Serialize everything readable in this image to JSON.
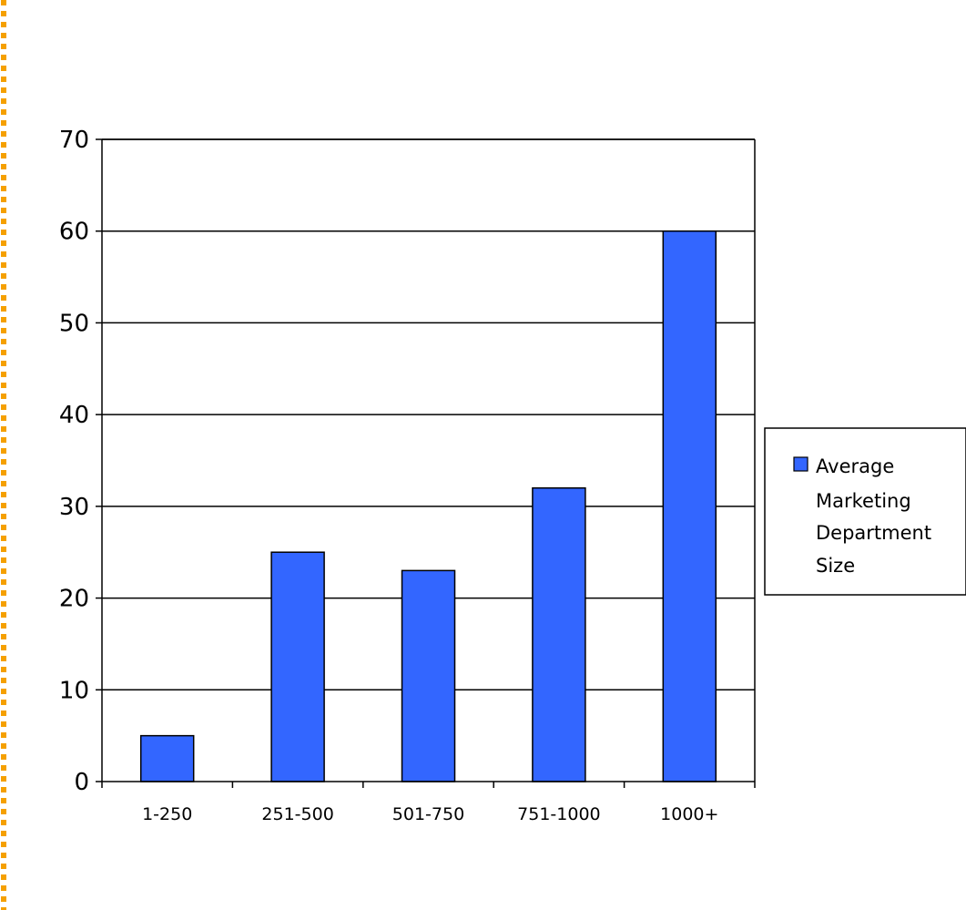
{
  "chart_data": {
    "type": "bar",
    "categories": [
      "1-250",
      "251-500",
      "501-750",
      "751-1000",
      "1000+"
    ],
    "series": [
      {
        "name": "Average Marketing Department Size",
        "values": [
          5,
          25,
          23,
          32,
          60
        ]
      }
    ],
    "ylim": [
      0,
      70
    ],
    "yticks": [
      0,
      10,
      20,
      30,
      40,
      50,
      60,
      70
    ],
    "grid": true,
    "legend_position": "right",
    "legend_lines": [
      "Average",
      "Marketing",
      "Department",
      "Size"
    ],
    "bar_color": "#3366ff",
    "border_color": "#f5a000"
  }
}
